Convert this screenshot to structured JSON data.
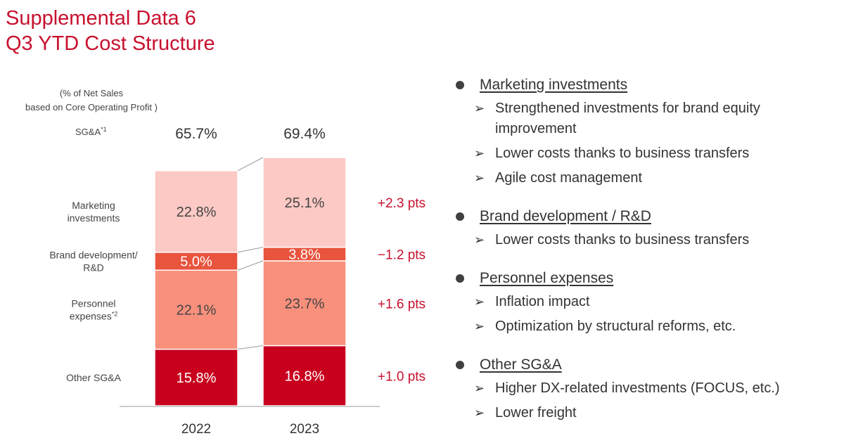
{
  "header": {
    "title_line1": "Supplemental Data 6",
    "title_line2": "Q3 YTD Cost Structure"
  },
  "colors": {
    "title_red": "#c8102e",
    "marketing": "#fcc9c4",
    "brand_rd": "#e8543e",
    "personnel": "#f8907c",
    "other_sga": "#c8001e",
    "diff_text": "#c8102e"
  },
  "chart_data": {
    "type": "bar",
    "stacked": true,
    "unit_note_line1": "(% of Net Sales",
    "unit_note_line2": "based on Core Operating Profit )",
    "total_label": "SG&A",
    "total_label_note": "*1",
    "categories": [
      "2022",
      "2023"
    ],
    "totals": [
      65.7,
      69.4
    ],
    "total_labels": [
      "65.7%",
      "69.4%"
    ],
    "series": [
      {
        "name": "Other SG&A",
        "label_lines": [
          "Other SG&A"
        ],
        "note": "",
        "values": [
          15.8,
          16.8
        ],
        "value_labels": [
          "15.8%",
          "16.8%"
        ],
        "change": "+1.0 pts",
        "color": "#c8001e"
      },
      {
        "name": "Personnel expenses",
        "label_lines": [
          "Personnel",
          "expenses"
        ],
        "note": "*2",
        "values": [
          22.1,
          23.7
        ],
        "value_labels": [
          "22.1%",
          "23.7%"
        ],
        "change": "+1.6 pts",
        "color": "#f8907c"
      },
      {
        "name": "Brand development/ R&D",
        "label_lines": [
          "Brand development/",
          "R&D"
        ],
        "note": "",
        "values": [
          5.0,
          3.8
        ],
        "value_labels": [
          "5.0%",
          "3.8%"
        ],
        "change": "−1.2 pts",
        "color": "#e8543e"
      },
      {
        "name": "Marketing investments",
        "label_lines": [
          "Marketing",
          "investments"
        ],
        "note": "",
        "values": [
          22.8,
          25.1
        ],
        "value_labels": [
          "22.8%",
          "25.1%"
        ],
        "change": "+2.3 pts",
        "color": "#fcc9c4"
      }
    ],
    "ylim": [
      0,
      69.4
    ],
    "grid": false,
    "legend": "left"
  },
  "notes": [
    {
      "heading": "Marketing investments",
      "items": [
        "Strengthened investments for brand equity improvement",
        "Lower costs thanks to business transfers",
        "Agile cost management"
      ]
    },
    {
      "heading": "Brand development / R&D",
      "items": [
        "Lower costs thanks to business transfers"
      ]
    },
    {
      "heading": "Personnel expenses",
      "items": [
        "Inflation impact",
        "Optimization by structural reforms, etc."
      ]
    },
    {
      "heading": "Other SG&A",
      "items": [
        "Higher DX-related investments (FOCUS, etc.)",
        "Lower freight"
      ]
    }
  ]
}
